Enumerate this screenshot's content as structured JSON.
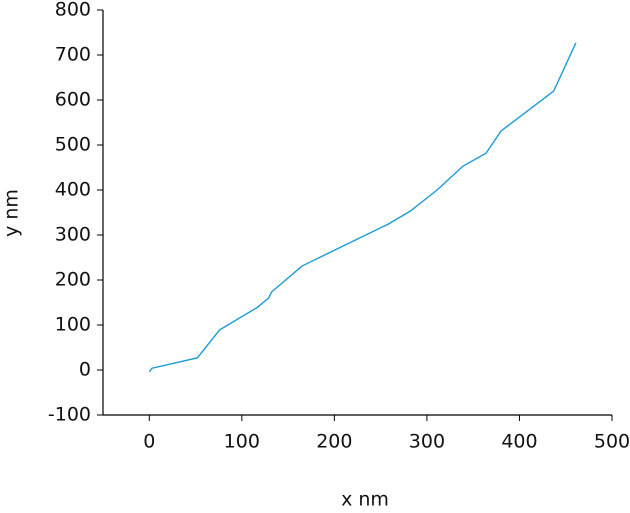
{
  "chart_data": {
    "type": "line",
    "x_label": "x nm",
    "y_label": "y nm",
    "x": [
      0,
      3,
      52,
      76,
      116,
      129,
      132,
      165,
      212,
      258,
      282,
      311,
      339,
      364,
      380,
      437,
      461
    ],
    "series": [
      {
        "name": "y",
        "color": "#1a9bd7",
        "values": [
          -4,
          4,
          27,
          89,
          138,
          160,
          173,
          231,
          278,
          324,
          353,
          400,
          453,
          482,
          531,
          620,
          727
        ]
      }
    ],
    "xlim": [
      -50,
      500
    ],
    "xticks": [
      0,
      100,
      200,
      300,
      400,
      500
    ],
    "ylim": [
      -100,
      800
    ],
    "yticks": [
      -100,
      0,
      100,
      200,
      300,
      400,
      500,
      600,
      700,
      800
    ]
  }
}
